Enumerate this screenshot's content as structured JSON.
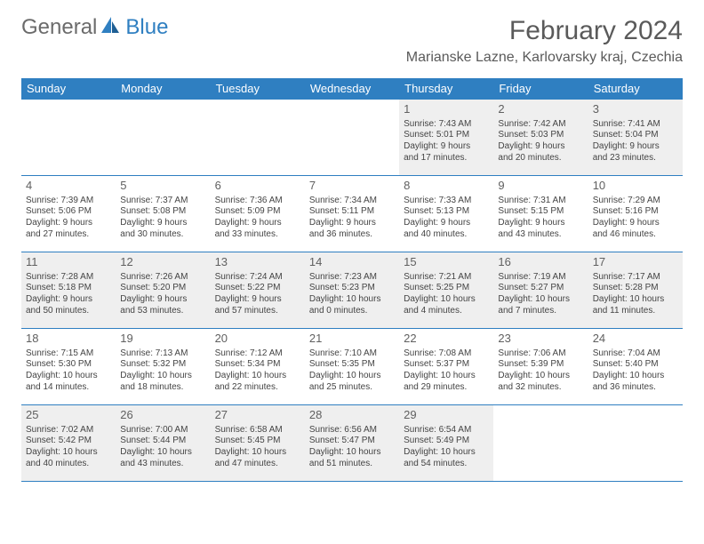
{
  "logo": {
    "text1": "General",
    "text2": "Blue"
  },
  "title": "February 2024",
  "location": "Marianske Lazne, Karlovarsky kraj, Czechia",
  "colors": {
    "accent": "#2f7fc1",
    "shade": "#efefef",
    "text": "#444444",
    "headerText": "#ffffff"
  },
  "daynames": [
    "Sunday",
    "Monday",
    "Tuesday",
    "Wednesday",
    "Thursday",
    "Friday",
    "Saturday"
  ],
  "weeks": [
    [
      null,
      null,
      null,
      null,
      {
        "n": "1",
        "sr": "Sunrise: 7:43 AM",
        "ss": "Sunset: 5:01 PM",
        "dl1": "Daylight: 9 hours",
        "dl2": "and 17 minutes."
      },
      {
        "n": "2",
        "sr": "Sunrise: 7:42 AM",
        "ss": "Sunset: 5:03 PM",
        "dl1": "Daylight: 9 hours",
        "dl2": "and 20 minutes."
      },
      {
        "n": "3",
        "sr": "Sunrise: 7:41 AM",
        "ss": "Sunset: 5:04 PM",
        "dl1": "Daylight: 9 hours",
        "dl2": "and 23 minutes."
      }
    ],
    [
      {
        "n": "4",
        "sr": "Sunrise: 7:39 AM",
        "ss": "Sunset: 5:06 PM",
        "dl1": "Daylight: 9 hours",
        "dl2": "and 27 minutes."
      },
      {
        "n": "5",
        "sr": "Sunrise: 7:37 AM",
        "ss": "Sunset: 5:08 PM",
        "dl1": "Daylight: 9 hours",
        "dl2": "and 30 minutes."
      },
      {
        "n": "6",
        "sr": "Sunrise: 7:36 AM",
        "ss": "Sunset: 5:09 PM",
        "dl1": "Daylight: 9 hours",
        "dl2": "and 33 minutes."
      },
      {
        "n": "7",
        "sr": "Sunrise: 7:34 AM",
        "ss": "Sunset: 5:11 PM",
        "dl1": "Daylight: 9 hours",
        "dl2": "and 36 minutes."
      },
      {
        "n": "8",
        "sr": "Sunrise: 7:33 AM",
        "ss": "Sunset: 5:13 PM",
        "dl1": "Daylight: 9 hours",
        "dl2": "and 40 minutes."
      },
      {
        "n": "9",
        "sr": "Sunrise: 7:31 AM",
        "ss": "Sunset: 5:15 PM",
        "dl1": "Daylight: 9 hours",
        "dl2": "and 43 minutes."
      },
      {
        "n": "10",
        "sr": "Sunrise: 7:29 AM",
        "ss": "Sunset: 5:16 PM",
        "dl1": "Daylight: 9 hours",
        "dl2": "and 46 minutes."
      }
    ],
    [
      {
        "n": "11",
        "sr": "Sunrise: 7:28 AM",
        "ss": "Sunset: 5:18 PM",
        "dl1": "Daylight: 9 hours",
        "dl2": "and 50 minutes."
      },
      {
        "n": "12",
        "sr": "Sunrise: 7:26 AM",
        "ss": "Sunset: 5:20 PM",
        "dl1": "Daylight: 9 hours",
        "dl2": "and 53 minutes."
      },
      {
        "n": "13",
        "sr": "Sunrise: 7:24 AM",
        "ss": "Sunset: 5:22 PM",
        "dl1": "Daylight: 9 hours",
        "dl2": "and 57 minutes."
      },
      {
        "n": "14",
        "sr": "Sunrise: 7:23 AM",
        "ss": "Sunset: 5:23 PM",
        "dl1": "Daylight: 10 hours",
        "dl2": "and 0 minutes."
      },
      {
        "n": "15",
        "sr": "Sunrise: 7:21 AM",
        "ss": "Sunset: 5:25 PM",
        "dl1": "Daylight: 10 hours",
        "dl2": "and 4 minutes."
      },
      {
        "n": "16",
        "sr": "Sunrise: 7:19 AM",
        "ss": "Sunset: 5:27 PM",
        "dl1": "Daylight: 10 hours",
        "dl2": "and 7 minutes."
      },
      {
        "n": "17",
        "sr": "Sunrise: 7:17 AM",
        "ss": "Sunset: 5:28 PM",
        "dl1": "Daylight: 10 hours",
        "dl2": "and 11 minutes."
      }
    ],
    [
      {
        "n": "18",
        "sr": "Sunrise: 7:15 AM",
        "ss": "Sunset: 5:30 PM",
        "dl1": "Daylight: 10 hours",
        "dl2": "and 14 minutes."
      },
      {
        "n": "19",
        "sr": "Sunrise: 7:13 AM",
        "ss": "Sunset: 5:32 PM",
        "dl1": "Daylight: 10 hours",
        "dl2": "and 18 minutes."
      },
      {
        "n": "20",
        "sr": "Sunrise: 7:12 AM",
        "ss": "Sunset: 5:34 PM",
        "dl1": "Daylight: 10 hours",
        "dl2": "and 22 minutes."
      },
      {
        "n": "21",
        "sr": "Sunrise: 7:10 AM",
        "ss": "Sunset: 5:35 PM",
        "dl1": "Daylight: 10 hours",
        "dl2": "and 25 minutes."
      },
      {
        "n": "22",
        "sr": "Sunrise: 7:08 AM",
        "ss": "Sunset: 5:37 PM",
        "dl1": "Daylight: 10 hours",
        "dl2": "and 29 minutes."
      },
      {
        "n": "23",
        "sr": "Sunrise: 7:06 AM",
        "ss": "Sunset: 5:39 PM",
        "dl1": "Daylight: 10 hours",
        "dl2": "and 32 minutes."
      },
      {
        "n": "24",
        "sr": "Sunrise: 7:04 AM",
        "ss": "Sunset: 5:40 PM",
        "dl1": "Daylight: 10 hours",
        "dl2": "and 36 minutes."
      }
    ],
    [
      {
        "n": "25",
        "sr": "Sunrise: 7:02 AM",
        "ss": "Sunset: 5:42 PM",
        "dl1": "Daylight: 10 hours",
        "dl2": "and 40 minutes."
      },
      {
        "n": "26",
        "sr": "Sunrise: 7:00 AM",
        "ss": "Sunset: 5:44 PM",
        "dl1": "Daylight: 10 hours",
        "dl2": "and 43 minutes."
      },
      {
        "n": "27",
        "sr": "Sunrise: 6:58 AM",
        "ss": "Sunset: 5:45 PM",
        "dl1": "Daylight: 10 hours",
        "dl2": "and 47 minutes."
      },
      {
        "n": "28",
        "sr": "Sunrise: 6:56 AM",
        "ss": "Sunset: 5:47 PM",
        "dl1": "Daylight: 10 hours",
        "dl2": "and 51 minutes."
      },
      {
        "n": "29",
        "sr": "Sunrise: 6:54 AM",
        "ss": "Sunset: 5:49 PM",
        "dl1": "Daylight: 10 hours",
        "dl2": "and 54 minutes."
      },
      null,
      null
    ]
  ]
}
